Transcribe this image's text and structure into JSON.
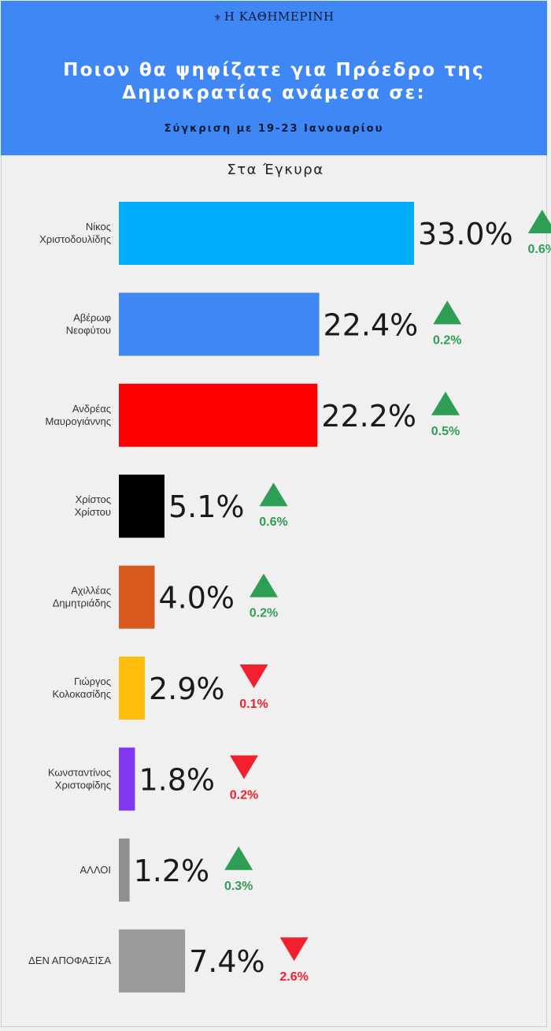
{
  "header": {
    "logo": "Η ΚΑΘΗΜΕΡΙΝΗ",
    "title_line1": "Ποιον θα ψηφίζατε για Πρόεδρο της",
    "title_line2": "Δημοκρατίας ανάμεσα σε:",
    "subtitle": "Σύγκριση με 19-23 Ιανουαρίου"
  },
  "section_label": "Στα Έγκυρα",
  "colors": {
    "up": "#2e9e55",
    "down": "#f2202e",
    "header_bg": "#3f87f5"
  },
  "chart_data": {
    "type": "bar",
    "orientation": "horizontal",
    "unit": "%",
    "xlim": [
      0,
      33
    ],
    "categories": [
      [
        "Νίκος",
        "Χριστοδουλίδης"
      ],
      [
        "Αβέρωφ",
        "Νεοφύτου"
      ],
      [
        "Ανδρέας",
        "Μαυρογιάννης"
      ],
      [
        "Χρίστος",
        "Χρίστου"
      ],
      [
        "Αχιλλέας",
        "Δημητριάδης"
      ],
      [
        "Γιώργος",
        "Κολοκασίδης"
      ],
      [
        "Κωνσταντίνος",
        "Χριστοφίδης"
      ],
      [
        "ΑΛΛΟΙ"
      ],
      [
        "ΔΕΝ ΑΠΟΦΑΣΙΣΑ"
      ]
    ],
    "values": [
      33.0,
      22.4,
      22.2,
      5.1,
      4.0,
      2.9,
      1.8,
      1.2,
      7.4
    ],
    "value_labels": [
      "33.0%",
      "22.4%",
      "22.2%",
      "5.1%",
      "4.0%",
      "2.9%",
      "1.8%",
      "1.2%",
      "7.4%"
    ],
    "bar_colors": [
      "#00adfb",
      "#3f87f5",
      "#ff0000",
      "#000000",
      "#d95a1f",
      "#ffbd0c",
      "#8037f0",
      "#8f8f8f",
      "#9b9b9b"
    ],
    "changes": [
      {
        "direction": "up",
        "label": "0.6%"
      },
      {
        "direction": "up",
        "label": "0.2%"
      },
      {
        "direction": "up",
        "label": "0.5%"
      },
      {
        "direction": "up",
        "label": "0.6%"
      },
      {
        "direction": "up",
        "label": "0.2%"
      },
      {
        "direction": "down",
        "label": "0.1%"
      },
      {
        "direction": "down",
        "label": "0.2%"
      },
      {
        "direction": "up",
        "label": "0.3%"
      },
      {
        "direction": "down",
        "label": "2.6%"
      }
    ]
  }
}
